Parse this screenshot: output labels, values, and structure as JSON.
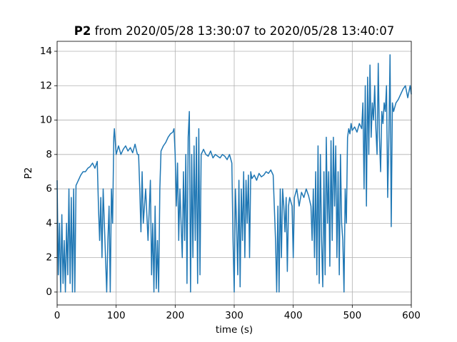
{
  "chart_data": {
    "type": "line",
    "title_bold": "P2",
    "title": "from 2020/05/28 13:30:07 to 2020/05/28 13:40:07",
    "x_label": "time (s)",
    "y_label": "P2",
    "xlim": [
      0,
      600
    ],
    "ylim": [
      -0.75,
      14.58
    ],
    "xticks": [
      0,
      100,
      200,
      300,
      400,
      500,
      600
    ],
    "yticks": [
      0,
      2,
      4,
      6,
      8,
      10,
      12,
      14
    ],
    "grid": true,
    "x": [
      0,
      2,
      4,
      6,
      8,
      10,
      12,
      14,
      16,
      18,
      20,
      22,
      24,
      26,
      28,
      30,
      32,
      36,
      40,
      44,
      48,
      52,
      56,
      60,
      64,
      68,
      70,
      72,
      74,
      76,
      78,
      80,
      84,
      86,
      88,
      90,
      92,
      94,
      96,
      97,
      100,
      104,
      108,
      112,
      116,
      120,
      124,
      128,
      132,
      136,
      138,
      140,
      142,
      144,
      146,
      150,
      154,
      158,
      160,
      162,
      164,
      166,
      168,
      170,
      172,
      174,
      176,
      180,
      184,
      188,
      192,
      196,
      198,
      200,
      202,
      204,
      206,
      208,
      210,
      212,
      214,
      216,
      218,
      220,
      222,
      224,
      226,
      228,
      230,
      232,
      234,
      236,
      238,
      240,
      242,
      244,
      248,
      252,
      256,
      260,
      264,
      268,
      272,
      276,
      280,
      284,
      288,
      292,
      296,
      298,
      300,
      302,
      304,
      306,
      308,
      310,
      312,
      314,
      316,
      318,
      320,
      322,
      324,
      326,
      328,
      330,
      334,
      338,
      342,
      346,
      350,
      354,
      358,
      362,
      366,
      370,
      372,
      374,
      376,
      378,
      380,
      382,
      384,
      386,
      388,
      390,
      392,
      394,
      398,
      400,
      402,
      406,
      410,
      414,
      418,
      422,
      426,
      430,
      432,
      434,
      436,
      438,
      440,
      442,
      444,
      446,
      448,
      450,
      452,
      454,
      456,
      458,
      460,
      462,
      464,
      466,
      468,
      470,
      472,
      474,
      476,
      478,
      480,
      482,
      484,
      486,
      488,
      490,
      492,
      494,
      496,
      498,
      500,
      504,
      508,
      512,
      516,
      518,
      520,
      522,
      524,
      526,
      528,
      530,
      532,
      534,
      536,
      538,
      540,
      542,
      544,
      546,
      548,
      550,
      552,
      554,
      556,
      558,
      560,
      562,
      564,
      566,
      568,
      570,
      574,
      578,
      582,
      586,
      590,
      594,
      598,
      600
    ],
    "series": [
      {
        "name": "P2",
        "color": "#1f77b4",
        "values": [
          6.5,
          1,
          4,
          0,
          4.5,
          0.5,
          3,
          0,
          4,
          1,
          6,
          0.5,
          5.5,
          0,
          6,
          0,
          6.2,
          6.5,
          6.8,
          7,
          7,
          7.2,
          7.3,
          7.5,
          7.2,
          7.6,
          5,
          3,
          5.5,
          2,
          6,
          4,
          0,
          3,
          5,
          0,
          6,
          4,
          9,
          9.5,
          8,
          8.5,
          8,
          8.3,
          8.5,
          8.2,
          8.4,
          8.1,
          8.6,
          8,
          8,
          6,
          3.5,
          7,
          4,
          6,
          3,
          6.5,
          1,
          4,
          0,
          5,
          0.2,
          3,
          0,
          6,
          8.2,
          8.5,
          8.7,
          9,
          9.2,
          9.3,
          9.5,
          8,
          5,
          7.5,
          3,
          6,
          4,
          2,
          7,
          3,
          8,
          0.5,
          9,
          10.5,
          0,
          8,
          2,
          8.5,
          3,
          9,
          0.5,
          9.5,
          1,
          8,
          8.3,
          8,
          7.9,
          8.2,
          7.8,
          8,
          7.9,
          7.8,
          8,
          7.9,
          7.7,
          8,
          7.5,
          3,
          0,
          6,
          4,
          1,
          6.5,
          0.3,
          6,
          3,
          7,
          2,
          6.5,
          4,
          6.8,
          2,
          7,
          6.6,
          6.8,
          6.5,
          6.9,
          6.7,
          6.8,
          7,
          6.9,
          7.1,
          6.8,
          3,
          0,
          5,
          0,
          6,
          2,
          6,
          5,
          3.5,
          5.5,
          1.2,
          5,
          5.5,
          5,
          2,
          5.5,
          6,
          5,
          5.8,
          5.5,
          6,
          5.6,
          5,
          3,
          6,
          2,
          7,
          1,
          8.5,
          0.5,
          8,
          3,
          0.3,
          7,
          1,
          9,
          4,
          7,
          1.5,
          8.8,
          3,
          9,
          5,
          8.5,
          2,
          7,
          1,
          8,
          4,
          3,
          0,
          6,
          4,
          9,
          9.5,
          9.2,
          9.8,
          9.4,
          9.6,
          9.3,
          9.8,
          9.5,
          11,
          6,
          12,
          5,
          12.5,
          8,
          13.2,
          9,
          11,
          10,
          12,
          9.5,
          8,
          13.3,
          9,
          7,
          10.5,
          9.8,
          11,
          10.5,
          12,
          5.5,
          9,
          13.8,
          3.8,
          11,
          10.5,
          11,
          11.2,
          11.5,
          11.8,
          12,
          11.3,
          12,
          11.5
        ]
      }
    ]
  }
}
